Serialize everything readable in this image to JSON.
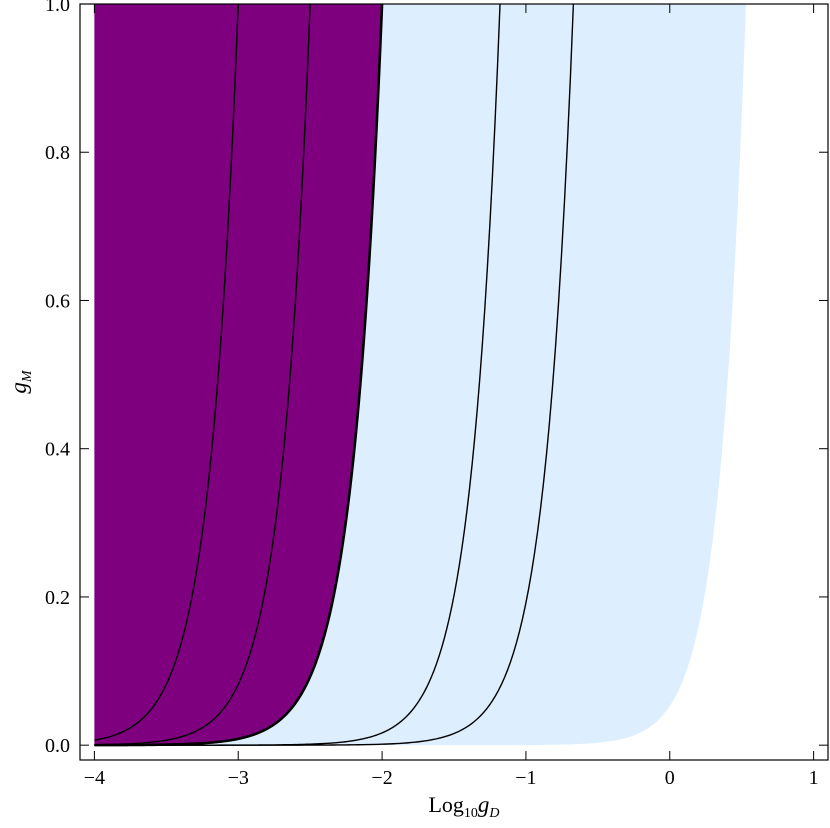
{
  "chart_data": {
    "type": "area",
    "title": "",
    "xlabel": {
      "base": "Log",
      "sub": "10",
      "var": "g",
      "varsub": "D"
    },
    "ylabel": {
      "var": "g",
      "varsub": "M"
    },
    "xlim": [
      -4.1,
      1.1
    ],
    "ylim": [
      -0.02,
      1.0
    ],
    "xticks": [
      -4,
      -3,
      -2,
      -1,
      0,
      1
    ],
    "xtick_labels": [
      "−4",
      "−3",
      "−2",
      "−1",
      "0",
      "1"
    ],
    "yticks": [
      0.0,
      0.2,
      0.4,
      0.6,
      0.8,
      1.0
    ],
    "ytick_labels": [
      "0.0",
      "0.2",
      "0.4",
      "0.6",
      "0.8",
      "1.0"
    ],
    "regions": [
      {
        "color": "#ddeeff",
        "x_min": -4,
        "boundary": {
          "x_at_top": 0.53,
          "k": 0.18
        }
      },
      {
        "color": "#7f007f",
        "x_min": -4,
        "boundary": {
          "x_at_top": -2.0,
          "k": 0.21
        }
      }
    ],
    "curves": [
      {
        "x_at_top": -3.0,
        "k": 0.2
      },
      {
        "x_at_top": -2.5,
        "k": 0.2
      },
      {
        "x_at_top": -2.0,
        "k": 0.21,
        "bold": true
      },
      {
        "x_at_top": -1.18,
        "k": 0.2
      },
      {
        "x_at_top": -0.67,
        "k": 0.2
      }
    ],
    "grid": false
  }
}
